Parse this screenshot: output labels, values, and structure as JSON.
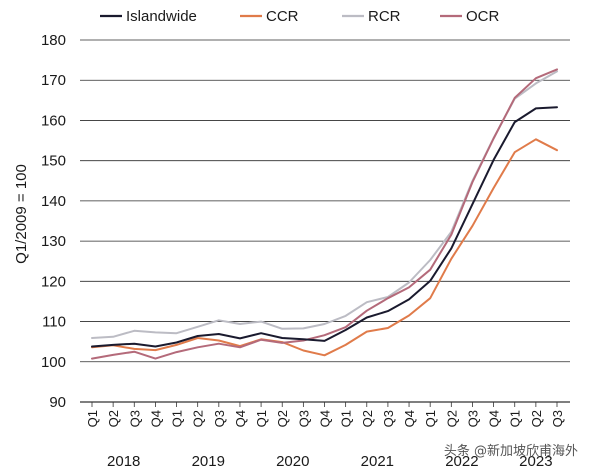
{
  "chart_data": {
    "type": "line",
    "ylabel": "Q1/2009 = 100",
    "ylim": [
      90,
      180
    ],
    "yticks": [
      90,
      100,
      110,
      120,
      130,
      140,
      150,
      160,
      170,
      180
    ],
    "grid": "horizontal",
    "legend_position": "top",
    "categories": [
      "Q1",
      "Q2",
      "Q3",
      "Q4",
      "Q1",
      "Q2",
      "Q3",
      "Q4",
      "Q1",
      "Q2",
      "Q3",
      "Q4",
      "Q1",
      "Q2",
      "Q3",
      "Q4",
      "Q1",
      "Q2",
      "Q3",
      "Q4",
      "Q1",
      "Q2",
      "Q3"
    ],
    "years": [
      {
        "label": "2018",
        "start": 0,
        "end": 3
      },
      {
        "label": "2019",
        "start": 4,
        "end": 7
      },
      {
        "label": "2020",
        "start": 8,
        "end": 11
      },
      {
        "label": "2021",
        "start": 12,
        "end": 15
      },
      {
        "label": "2022",
        "start": 16,
        "end": 19
      },
      {
        "label": "2023",
        "start": 20,
        "end": 22
      }
    ],
    "series": [
      {
        "name": "Islandwide",
        "color": "#1a1a2e",
        "values": [
          103.8,
          104.2,
          104.5,
          103.8,
          104.8,
          106.4,
          106.9,
          105.8,
          107.1,
          105.9,
          105.6,
          105.2,
          107.9,
          111.0,
          112.6,
          115.5,
          120.1,
          128.2,
          139.2,
          150.2,
          159.6,
          163.0,
          163.3
        ]
      },
      {
        "name": "CCR",
        "color": "#e07b4a",
        "values": [
          103.6,
          104.1,
          103.2,
          102.9,
          104.2,
          105.9,
          105.3,
          103.9,
          105.6,
          104.9,
          102.8,
          101.6,
          104.2,
          107.5,
          108.4,
          111.5,
          115.8,
          125.6,
          133.8,
          143.2,
          152.1,
          155.3,
          152.6
        ]
      },
      {
        "name": "RCR",
        "color": "#bcbcc4",
        "values": [
          105.9,
          106.2,
          107.7,
          107.3,
          107.1,
          108.7,
          110.3,
          109.4,
          110.0,
          108.2,
          108.3,
          109.4,
          111.4,
          114.8,
          116.1,
          119.7,
          125.3,
          132.3,
          145.0,
          155.6,
          165.4,
          169.2,
          172.2
        ]
      },
      {
        "name": "OCR",
        "color": "#b46a7a",
        "values": [
          100.8,
          101.7,
          102.5,
          100.8,
          102.4,
          103.6,
          104.5,
          103.6,
          105.5,
          104.7,
          105.3,
          106.6,
          108.6,
          112.7,
          115.8,
          118.5,
          122.9,
          131.6,
          144.7,
          155.5,
          165.6,
          170.5,
          172.7
        ]
      }
    ]
  },
  "watermark": "头条 @新加坡欣甫海外"
}
